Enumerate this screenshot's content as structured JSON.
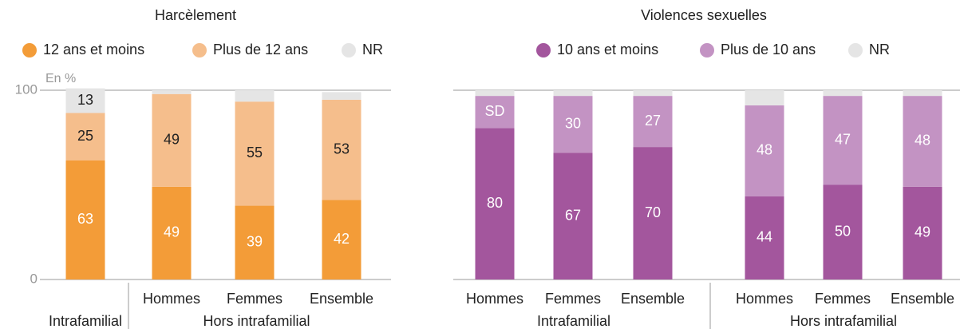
{
  "chart_data": [
    {
      "type": "bar",
      "stacked": true,
      "title": "Harcèlement",
      "ylabel": "En %",
      "categories": [
        null,
        "Hommes",
        "Femmes",
        "Ensemble"
      ],
      "groups": [
        "Intrafamilial",
        "Hors intrafamilial",
        "Hors intrafamilial",
        "Hors intrafamilial"
      ],
      "ylim": [
        0,
        100
      ],
      "yticks": [
        0,
        100
      ],
      "series": [
        {
          "name": "12 ans et moins",
          "color": "#f39c38",
          "values": [
            63,
            49,
            39,
            42
          ],
          "value_labels": [
            "63",
            "49",
            "39",
            "42"
          ]
        },
        {
          "name": "Plus de 12 ans",
          "color": "#f5be8c",
          "values": [
            25,
            49,
            55,
            53
          ],
          "value_labels": [
            "25",
            "49",
            "55",
            "53"
          ]
        },
        {
          "name": "NR",
          "color": "#e5e5e5",
          "values": [
            13,
            2,
            6,
            4
          ],
          "value_labels": [
            "13",
            null,
            null,
            null
          ]
        }
      ]
    },
    {
      "type": "bar",
      "stacked": true,
      "title": "Violences sexuelles",
      "categories": [
        "Hommes",
        "Femmes",
        "Ensemble",
        "Hommes",
        "Femmes",
        "Ensemble"
      ],
      "groups": [
        "Intrafamilial",
        "Intrafamilial",
        "Intrafamilial",
        "Hors intrafamilial",
        "Hors intrafamilial",
        "Hors intrafamilial"
      ],
      "ylim": [
        0,
        100
      ],
      "series": [
        {
          "name": "10 ans et moins",
          "color": "#a3569d",
          "values": [
            80,
            67,
            70,
            44,
            50,
            49
          ],
          "value_labels": [
            "80",
            "67",
            "70",
            "44",
            "50",
            "49"
          ]
        },
        {
          "name": "Plus de 10 ans",
          "color": "#c393c3",
          "values": [
            17,
            30,
            27,
            48,
            47,
            48
          ],
          "value_labels": [
            "SD",
            "30",
            "27",
            "48",
            "47",
            "48"
          ]
        },
        {
          "name": "NR",
          "color": "#e5e5e5",
          "values": [
            3,
            3,
            3,
            8,
            3,
            3
          ],
          "value_labels": [
            null,
            null,
            null,
            null,
            null,
            null
          ]
        }
      ]
    }
  ]
}
